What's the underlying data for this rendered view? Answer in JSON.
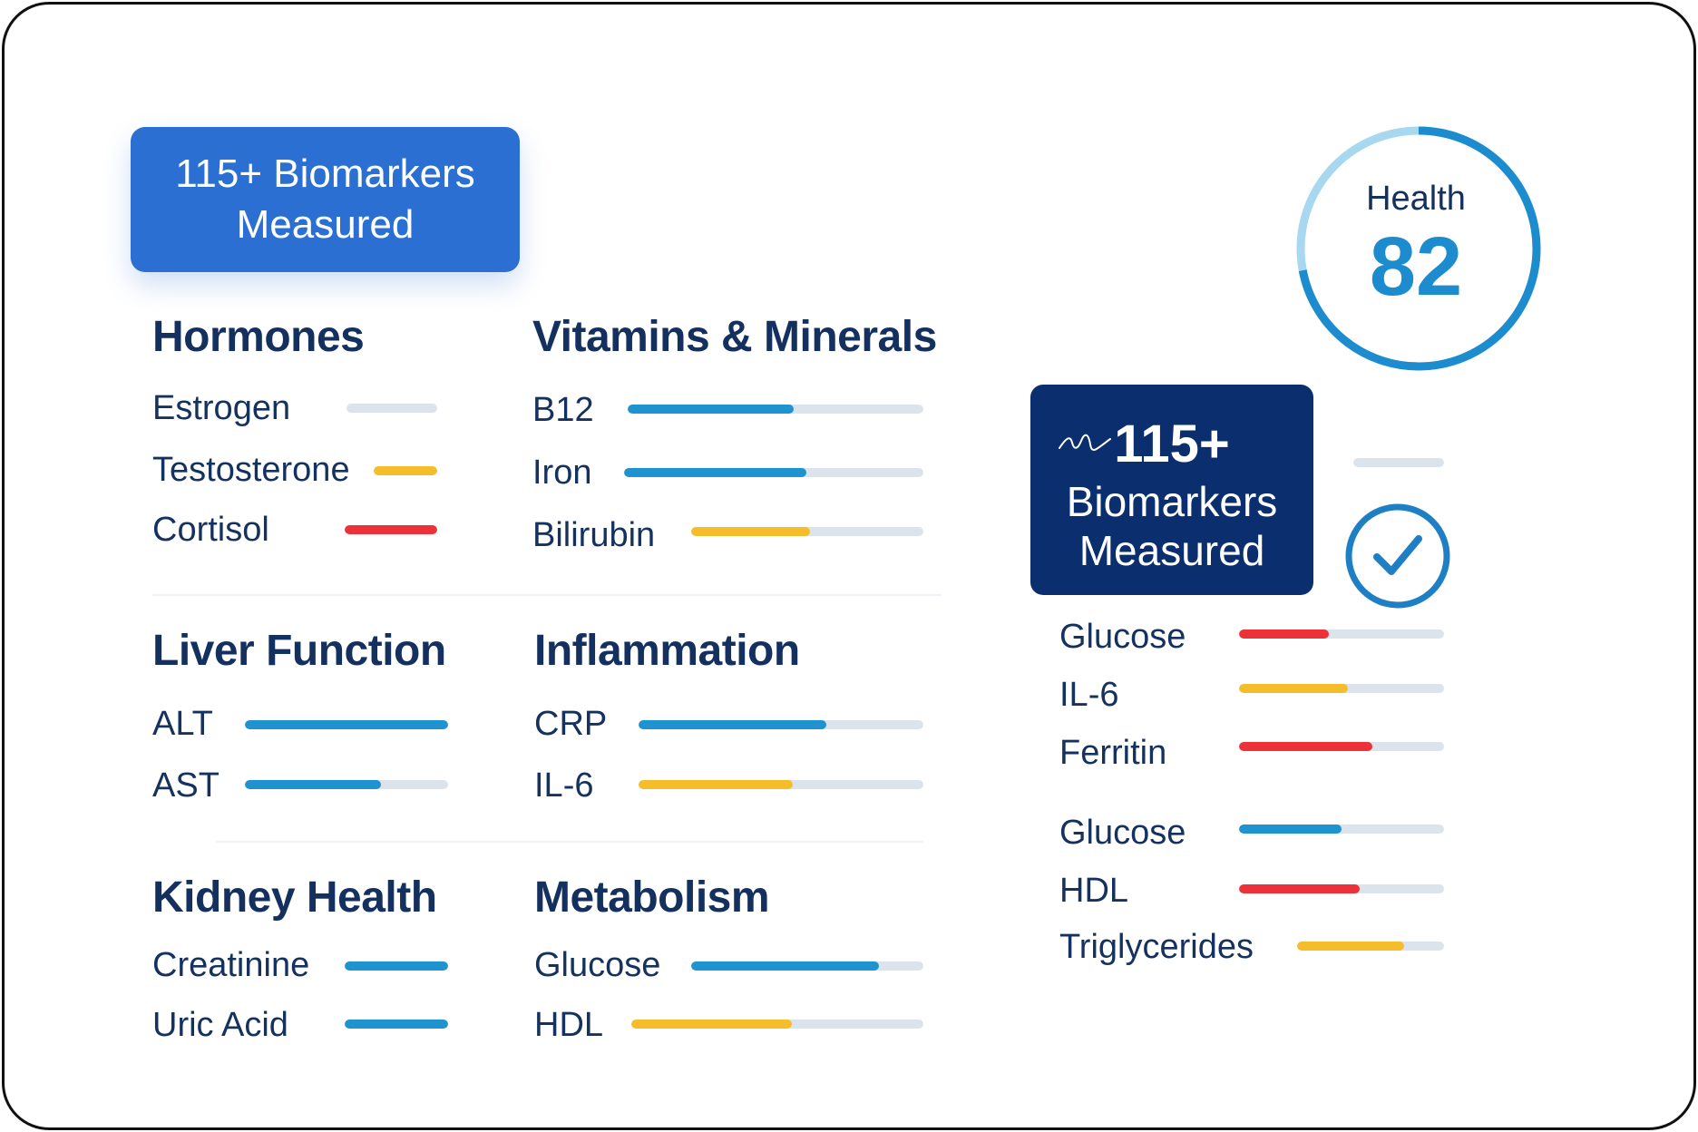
{
  "badge_top": {
    "line1": "115+ Biomarkers",
    "line2": "Measured"
  },
  "health": {
    "label": "Health",
    "score": "82",
    "score_value": 82,
    "ring_fraction": 0.72
  },
  "badge_side": {
    "big": "115+",
    "line2": "Biomarkers",
    "line3": "Measured"
  },
  "colors": {
    "blue": "#1f93cf",
    "yellow": "#f6bd2b",
    "red": "#ec3138",
    "track": "#dbe4ed",
    "navy": "#0b2f6e",
    "brand_blue": "#2a6fd1"
  },
  "sections": {
    "hormones": {
      "title": "Hormones",
      "items": [
        {
          "label": "Estrogen",
          "fill": 0.0,
          "color": "#dbe4ed"
        },
        {
          "label": "Testosterone",
          "fill": 1.0,
          "color": "#f6bd2b"
        },
        {
          "label": "Cortisol",
          "fill": 1.0,
          "color": "#ec3138"
        }
      ]
    },
    "vitamins": {
      "title": "Vitamins & Minerals",
      "items": [
        {
          "label": "B12",
          "fill": 0.56,
          "color": "#1f93cf"
        },
        {
          "label": "Iron",
          "fill": 0.61,
          "color": "#1f93cf"
        },
        {
          "label": "Bilirubin",
          "fill": 0.51,
          "color": "#f6bd2b"
        }
      ]
    },
    "liver": {
      "title": "Liver Function",
      "items": [
        {
          "label": "ALT",
          "fill": 1.0,
          "color": "#1f93cf"
        },
        {
          "label": "AST",
          "fill": 0.67,
          "color": "#1f93cf"
        }
      ]
    },
    "inflammation": {
      "title": "Inflammation",
      "items": [
        {
          "label": "CRP",
          "fill": 0.66,
          "color": "#1f93cf"
        },
        {
          "label": "IL-6",
          "fill": 0.54,
          "color": "#f6bd2b"
        }
      ]
    },
    "kidney": {
      "title": "Kidney Health",
      "items": [
        {
          "label": "Creatinine",
          "fill": 1.0,
          "color": "#1f93cf"
        },
        {
          "label": "Uric Acid",
          "fill": 1.0,
          "color": "#1f93cf"
        }
      ]
    },
    "metabolism": {
      "title": "Metabolism",
      "items": [
        {
          "label": "Glucose",
          "fill": 0.81,
          "color": "#1f93cf"
        },
        {
          "label": "HDL",
          "fill": 0.55,
          "color": "#f6bd2b"
        }
      ]
    },
    "side": {
      "items": [
        {
          "label": "Glucose",
          "fill": 0.44,
          "color": "#ec3138"
        },
        {
          "label": "IL-6",
          "fill": 0.53,
          "color": "#f6bd2b"
        },
        {
          "label": "Ferritin",
          "fill": 0.65,
          "color": "#ec3138"
        },
        {
          "label": "Glucose",
          "fill": 0.5,
          "color": "#1f93cf"
        },
        {
          "label": "HDL",
          "fill": 0.59,
          "color": "#ec3138"
        },
        {
          "label": "Triglycerides",
          "fill": 0.73,
          "color": "#f6bd2b"
        }
      ],
      "empty_bar_fill": 0.0
    }
  }
}
